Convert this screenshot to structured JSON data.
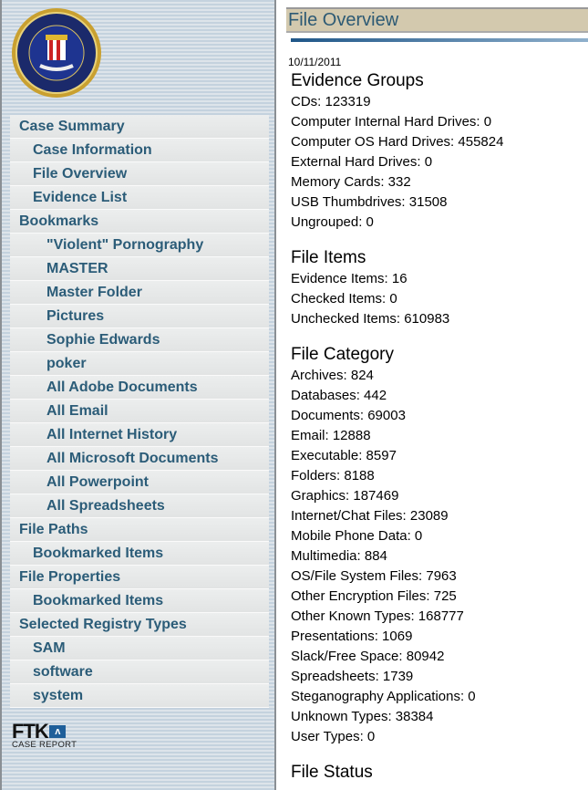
{
  "sidebar": {
    "logo_text": "Department of Justice · Federal Bureau of Investigation",
    "nav": [
      {
        "label": "Case Summary",
        "level": 1
      },
      {
        "label": "Case Information",
        "level": 2
      },
      {
        "label": "File Overview",
        "level": 2
      },
      {
        "label": "Evidence List",
        "level": 2
      },
      {
        "label": "Bookmarks",
        "level": 1
      },
      {
        "label": "\"Violent\" Pornography",
        "level": 3
      },
      {
        "label": "MASTER",
        "level": 3
      },
      {
        "label": "Master Folder",
        "level": 3
      },
      {
        "label": "Pictures",
        "level": 3
      },
      {
        "label": "Sophie Edwards",
        "level": 3
      },
      {
        "label": "poker",
        "level": 3
      },
      {
        "label": "All Adobe Documents",
        "level": 3
      },
      {
        "label": "All Email",
        "level": 3
      },
      {
        "label": "All Internet History",
        "level": 3
      },
      {
        "label": "All Microsoft Documents",
        "level": 3
      },
      {
        "label": "All Powerpoint",
        "level": 3
      },
      {
        "label": "All Spreadsheets",
        "level": 3
      },
      {
        "label": "File Paths",
        "level": 1
      },
      {
        "label": "Bookmarked Items",
        "level": 2
      },
      {
        "label": "File Properties",
        "level": 1
      },
      {
        "label": "Bookmarked Items",
        "level": 2
      },
      {
        "label": "Selected Registry Types",
        "level": 1
      },
      {
        "label": "SAM",
        "level": 2
      },
      {
        "label": "software",
        "level": 2
      },
      {
        "label": "system",
        "level": 2
      }
    ],
    "footer_logo": {
      "big": "FTK",
      "small": "CASE REPORT"
    }
  },
  "main": {
    "title": "File Overview",
    "date": "10/11/2011",
    "sections": [
      {
        "heading": "Evidence Groups",
        "rows": [
          "CDs: 123319",
          "Computer Internal Hard Drives: 0",
          "Computer OS Hard Drives: 455824",
          "External Hard Drives: 0",
          "Memory Cards: 332",
          "USB Thumbdrives: 31508",
          "Ungrouped: 0"
        ]
      },
      {
        "heading": "File Items",
        "rows": [
          "Evidence Items: 16",
          "Checked Items: 0",
          "Unchecked Items: 610983"
        ]
      },
      {
        "heading": "File Category",
        "rows": [
          "Archives: 824",
          "Databases: 442",
          "Documents: 69003",
          "Email: 12888",
          "Executable: 8597",
          "Folders: 8188",
          "Graphics: 187469",
          "Internet/Chat Files: 23089",
          "Mobile Phone Data: 0",
          "Multimedia: 884",
          "OS/File System Files: 7963",
          "Other Encryption Files: 725",
          "Other Known Types: 168777",
          "Presentations: 1069",
          "Slack/Free Space: 80942",
          "Spreadsheets: 1739",
          "Steganography Applications: 0",
          "Unknown Types: 38384",
          "User Types: 0"
        ]
      },
      {
        "heading": "File Status",
        "rows": []
      }
    ]
  }
}
